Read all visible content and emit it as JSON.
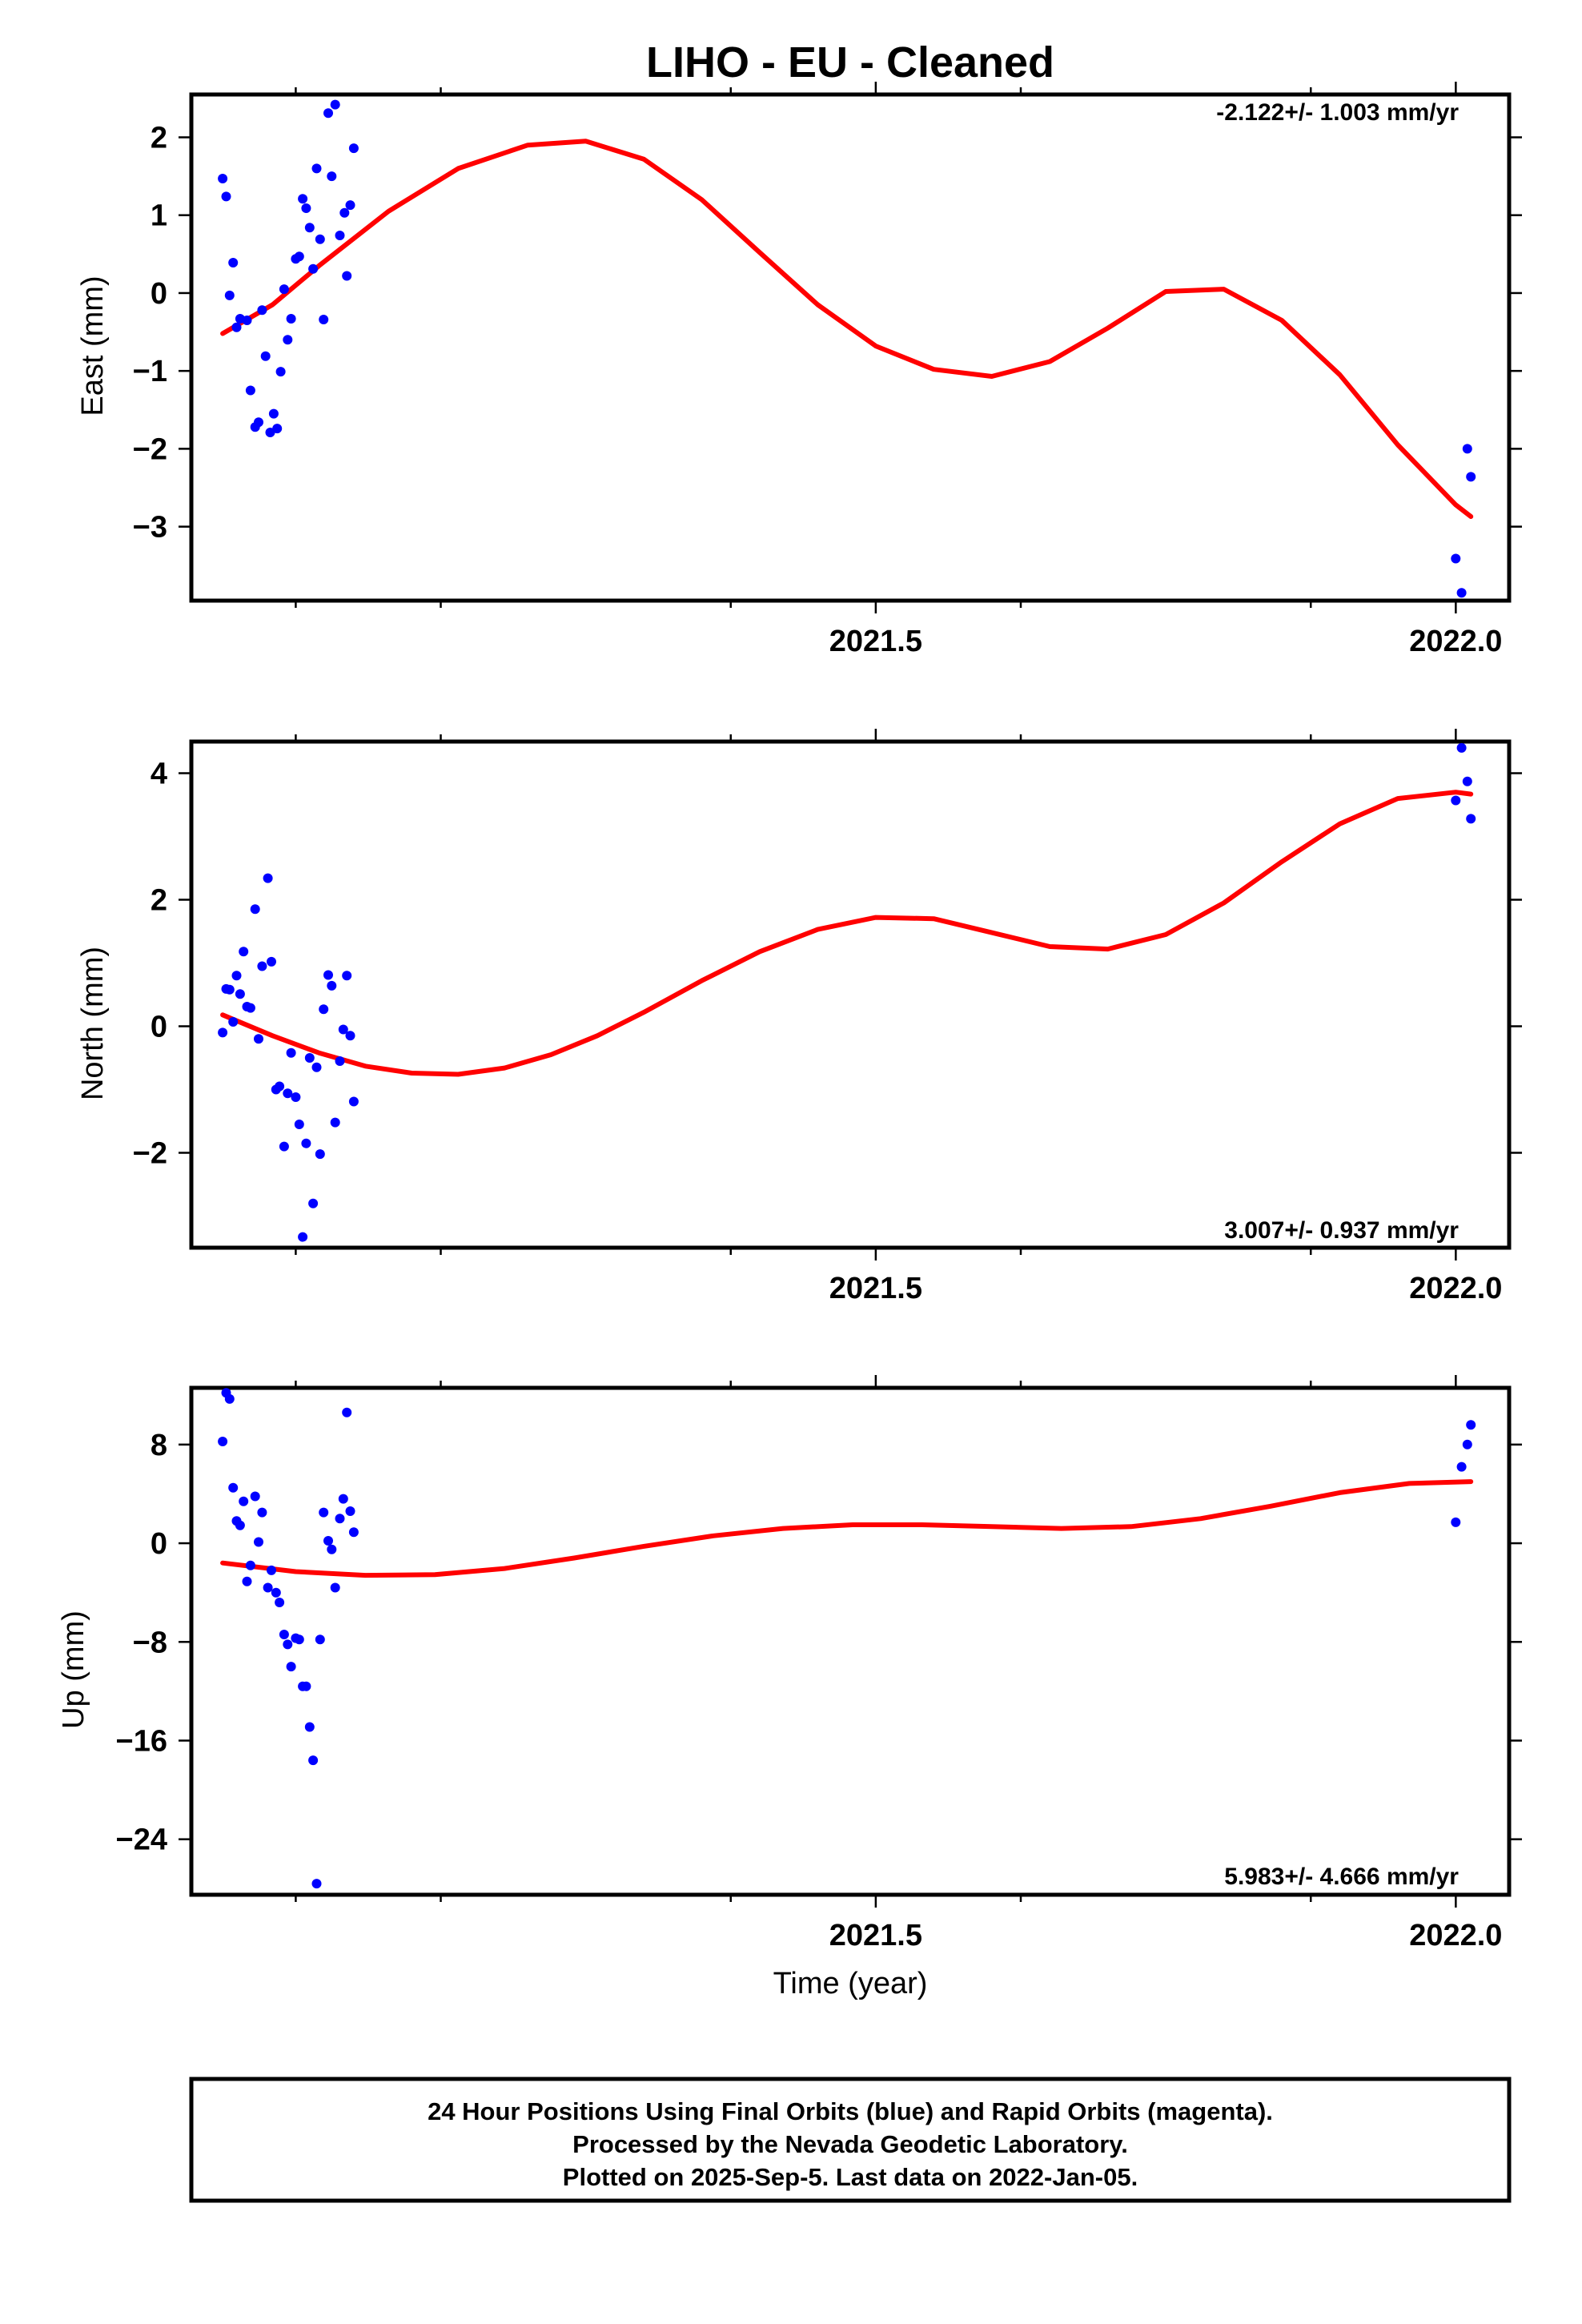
{
  "chart_data": {
    "title": "LIHO  - EU - Cleaned",
    "xlabel": "Time (year)",
    "xlim": [
      2020.91,
      2022.046
    ],
    "x_ticks": [
      2021.5,
      2022.0
    ],
    "x_tick_labels": [
      "2021.5",
      "2022.0"
    ],
    "x_minor_ticks": [
      2021.0,
      2021.125,
      2021.375,
      2021.625,
      2021.875
    ],
    "panels": [
      {
        "name": "east",
        "type": "scatter",
        "ylabel": "East (mm)",
        "ylim": [
          -3.95,
          2.55
        ],
        "y_ticks": [
          2,
          1,
          0,
          -1,
          -2,
          -3
        ],
        "y_tick_labels": [
          "2",
          "1",
          "0",
          "−1",
          "−2",
          "−3"
        ],
        "rate": "-2.122+/- 1.003 mm/yr",
        "rate_position": "top-right",
        "point_color": "#0000ff",
        "fit_color": "#ff0000",
        "points": [
          [
            2020.937,
            1.47
          ],
          [
            2020.94,
            1.24
          ],
          [
            2020.943,
            -0.03
          ],
          [
            2020.946,
            0.39
          ],
          [
            2020.949,
            -0.44
          ],
          [
            2020.952,
            -0.33
          ],
          [
            2020.958,
            -0.35
          ],
          [
            2020.961,
            -1.25
          ],
          [
            2020.965,
            -1.72
          ],
          [
            2020.968,
            -1.66
          ],
          [
            2020.971,
            -0.22
          ],
          [
            2020.974,
            -0.81
          ],
          [
            2020.978,
            -1.79
          ],
          [
            2020.981,
            -1.55
          ],
          [
            2020.984,
            -1.74
          ],
          [
            2020.987,
            -1.01
          ],
          [
            2020.99,
            0.05
          ],
          [
            2020.993,
            -0.6
          ],
          [
            2020.996,
            -0.33
          ],
          [
            2021.0,
            0.44
          ],
          [
            2021.003,
            0.47
          ],
          [
            2021.006,
            1.21
          ],
          [
            2021.009,
            1.09
          ],
          [
            2021.012,
            0.84
          ],
          [
            2021.015,
            0.31
          ],
          [
            2021.018,
            1.6
          ],
          [
            2021.021,
            0.69
          ],
          [
            2021.024,
            -0.34
          ],
          [
            2021.028,
            2.31
          ],
          [
            2021.031,
            1.5
          ],
          [
            2021.034,
            2.42
          ],
          [
            2021.038,
            0.74
          ],
          [
            2021.042,
            1.03
          ],
          [
            2021.044,
            0.22
          ],
          [
            2021.047,
            1.13
          ],
          [
            2021.05,
            1.86
          ],
          [
            2022.0,
            -3.41
          ],
          [
            2022.005,
            -3.85
          ],
          [
            2022.01,
            -2.0
          ],
          [
            2022.013,
            -2.36
          ]
        ],
        "fit": {
          "x": [
            2020.937,
            2020.98,
            2021.02,
            2021.08,
            2021.14,
            2021.2,
            2021.25,
            2021.3,
            2021.35,
            2021.4,
            2021.45,
            2021.5,
            2021.55,
            2021.6,
            2021.65,
            2021.7,
            2021.75,
            2021.8,
            2021.85,
            2021.9,
            2021.95,
            2022.0,
            2022.013
          ],
          "y": [
            -0.52,
            -0.15,
            0.35,
            1.05,
            1.6,
            1.9,
            1.95,
            1.72,
            1.2,
            0.52,
            -0.15,
            -0.68,
            -0.98,
            -1.07,
            -0.88,
            -0.45,
            0.02,
            0.05,
            -0.35,
            -1.05,
            -1.95,
            -2.72,
            -2.87
          ]
        }
      },
      {
        "name": "north",
        "type": "scatter",
        "ylabel": "North (mm)",
        "ylim": [
          -3.5,
          4.5
        ],
        "y_ticks": [
          4,
          2,
          0,
          -2
        ],
        "y_tick_labels": [
          "4",
          "2",
          "0",
          "−2"
        ],
        "rate": "3.007+/- 0.937 mm/yr",
        "rate_position": "bottom-right",
        "point_color": "#0000ff",
        "fit_color": "#ff0000",
        "points": [
          [
            2020.937,
            -0.1
          ],
          [
            2020.94,
            0.59
          ],
          [
            2020.943,
            0.58
          ],
          [
            2020.946,
            0.07
          ],
          [
            2020.949,
            0.8
          ],
          [
            2020.952,
            0.51
          ],
          [
            2020.955,
            1.18
          ],
          [
            2020.958,
            0.31
          ],
          [
            2020.961,
            0.29
          ],
          [
            2020.965,
            1.85
          ],
          [
            2020.968,
            -0.2
          ],
          [
            2020.971,
            0.95
          ],
          [
            2020.976,
            2.34
          ],
          [
            2020.979,
            1.02
          ],
          [
            2020.983,
            -1.0
          ],
          [
            2020.986,
            -0.95
          ],
          [
            2020.99,
            -1.9
          ],
          [
            2020.993,
            -1.06
          ],
          [
            2020.996,
            -0.42
          ],
          [
            2021.0,
            -1.12
          ],
          [
            2021.003,
            -1.55
          ],
          [
            2021.006,
            -3.33
          ],
          [
            2021.009,
            -1.85
          ],
          [
            2021.012,
            -0.5
          ],
          [
            2021.015,
            -2.8
          ],
          [
            2021.018,
            -0.65
          ],
          [
            2021.021,
            -2.02
          ],
          [
            2021.024,
            0.27
          ],
          [
            2021.028,
            0.81
          ],
          [
            2021.031,
            0.64
          ],
          [
            2021.034,
            -1.52
          ],
          [
            2021.038,
            -0.55
          ],
          [
            2021.041,
            -0.05
          ],
          [
            2021.044,
            0.8
          ],
          [
            2021.047,
            -0.15
          ],
          [
            2021.05,
            -1.19
          ],
          [
            2022.0,
            3.57
          ],
          [
            2022.005,
            4.4
          ],
          [
            2022.01,
            3.87
          ],
          [
            2022.013,
            3.28
          ]
        ],
        "fit": {
          "x": [
            2020.937,
            2020.98,
            2021.02,
            2021.06,
            2021.1,
            2021.14,
            2021.18,
            2021.22,
            2021.26,
            2021.3,
            2021.35,
            2021.4,
            2021.45,
            2021.5,
            2021.55,
            2021.6,
            2021.65,
            2021.7,
            2021.75,
            2021.8,
            2021.85,
            2021.9,
            2021.95,
            2022.0,
            2022.013
          ],
          "y": [
            0.18,
            -0.15,
            -0.42,
            -0.63,
            -0.74,
            -0.76,
            -0.66,
            -0.45,
            -0.15,
            0.22,
            0.72,
            1.18,
            1.53,
            1.72,
            1.7,
            1.48,
            1.26,
            1.22,
            1.45,
            1.95,
            2.6,
            3.2,
            3.6,
            3.7,
            3.67
          ]
        }
      },
      {
        "name": "up",
        "type": "scatter",
        "ylabel": "Up (mm)",
        "ylim": [
          -28.5,
          12.6
        ],
        "y_ticks": [
          8,
          0,
          -8,
          -16,
          -24
        ],
        "y_tick_labels": [
          "8",
          "0",
          "−8",
          "−16",
          "−24"
        ],
        "rate": "5.983+/- 4.666 mm/yr",
        "rate_position": "bottom-right",
        "point_color": "#0000ff",
        "fit_color": "#ff0000",
        "points": [
          [
            2020.937,
            8.25
          ],
          [
            2020.94,
            12.2
          ],
          [
            2020.943,
            11.7
          ],
          [
            2020.946,
            4.5
          ],
          [
            2020.949,
            1.8
          ],
          [
            2020.952,
            1.45
          ],
          [
            2020.955,
            3.4
          ],
          [
            2020.958,
            -3.1
          ],
          [
            2020.961,
            -1.8
          ],
          [
            2020.965,
            3.8
          ],
          [
            2020.968,
            0.1
          ],
          [
            2020.971,
            2.5
          ],
          [
            2020.976,
            -3.6
          ],
          [
            2020.979,
            -2.2
          ],
          [
            2020.983,
            -4.0
          ],
          [
            2020.986,
            -4.8
          ],
          [
            2020.99,
            -7.4
          ],
          [
            2020.993,
            -8.2
          ],
          [
            2020.996,
            -10.0
          ],
          [
            2021.0,
            -7.7
          ],
          [
            2021.003,
            -7.8
          ],
          [
            2021.006,
            -11.6
          ],
          [
            2021.009,
            -11.6
          ],
          [
            2021.012,
            -14.9
          ],
          [
            2021.015,
            -17.6
          ],
          [
            2021.018,
            -27.6
          ],
          [
            2021.021,
            -7.8
          ],
          [
            2021.024,
            2.5
          ],
          [
            2021.028,
            0.2
          ],
          [
            2021.031,
            -0.5
          ],
          [
            2021.034,
            -3.6
          ],
          [
            2021.038,
            2.0
          ],
          [
            2021.041,
            3.6
          ],
          [
            2021.044,
            10.6
          ],
          [
            2021.047,
            2.6
          ],
          [
            2021.05,
            0.9
          ],
          [
            2022.0,
            1.7
          ],
          [
            2022.005,
            6.2
          ],
          [
            2022.01,
            8.0
          ],
          [
            2022.013,
            9.6
          ]
        ],
        "fit": {
          "x": [
            2020.937,
            2021.0,
            2021.06,
            2021.12,
            2021.18,
            2021.24,
            2021.3,
            2021.36,
            2021.42,
            2021.48,
            2021.54,
            2021.6,
            2021.66,
            2021.72,
            2021.78,
            2021.84,
            2021.9,
            2021.96,
            2022.013
          ],
          "y": [
            -1.6,
            -2.3,
            -2.6,
            -2.55,
            -2.05,
            -1.2,
            -0.25,
            0.6,
            1.2,
            1.5,
            1.5,
            1.35,
            1.2,
            1.35,
            2.0,
            3.0,
            4.1,
            4.85,
            5.0
          ]
        }
      }
    ],
    "footer": [
      "24 Hour Positions Using Final Orbits (blue) and Rapid Orbits (magenta).",
      "Processed by the Nevada Geodetic Laboratory.",
      "Plotted on 2025-Sep-5. Last data on 2022-Jan-05."
    ]
  }
}
